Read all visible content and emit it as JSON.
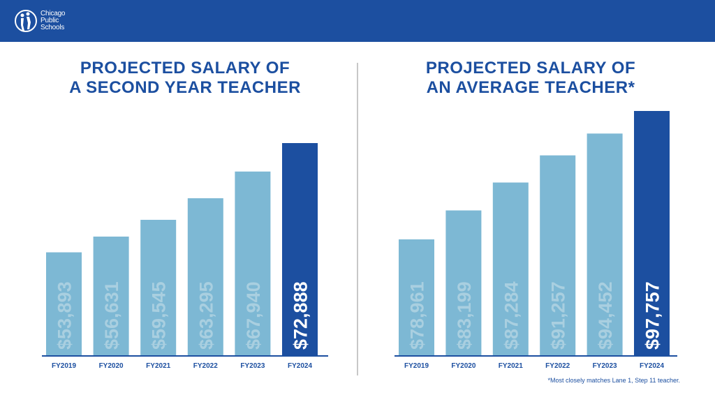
{
  "header": {
    "logo_lines": [
      "Chicago",
      "Public",
      "Schools"
    ]
  },
  "colors": {
    "header_bg": "#1c4fa0",
    "bar_light": "#7db8d4",
    "bar_highlight": "#1c4fa0",
    "label_on_light": "#a9cfe0",
    "label_on_highlight": "#ffffff",
    "title": "#1c4fa0",
    "axis": "#1c4fa0"
  },
  "chart_data": [
    {
      "type": "bar",
      "title_lines": [
        "PROJECTED SALARY OF",
        "A SECOND YEAR TEACHER"
      ],
      "categories": [
        "FY2019",
        "FY2020",
        "FY2021",
        "FY2022",
        "FY2023",
        "FY2024"
      ],
      "values": [
        53893,
        56631,
        59545,
        63295,
        67940,
        72888
      ],
      "data_labels": [
        "$53,893",
        "$56,631",
        "$59,545",
        "$63,295",
        "$67,940",
        "$72,888"
      ],
      "highlight_index": 5,
      "xlabel": "",
      "ylabel": "",
      "y_baseline": 36000
    },
    {
      "type": "bar",
      "title_lines": [
        "PROJECTED SALARY OF",
        "AN AVERAGE TEACHER*"
      ],
      "categories": [
        "FY2019",
        "FY2020",
        "FY2021",
        "FY2022",
        "FY2023",
        "FY2024"
      ],
      "values": [
        78961,
        83199,
        87284,
        91257,
        94452,
        97757
      ],
      "data_labels": [
        "$78,961",
        "$83,199",
        "$87,284",
        "$91,257",
        "$94,452",
        "$97,757"
      ],
      "highlight_index": 5,
      "xlabel": "",
      "ylabel": "",
      "y_baseline": 62000
    }
  ],
  "footnote": "*Most closely matches Lane 1, Step 11 teacher."
}
